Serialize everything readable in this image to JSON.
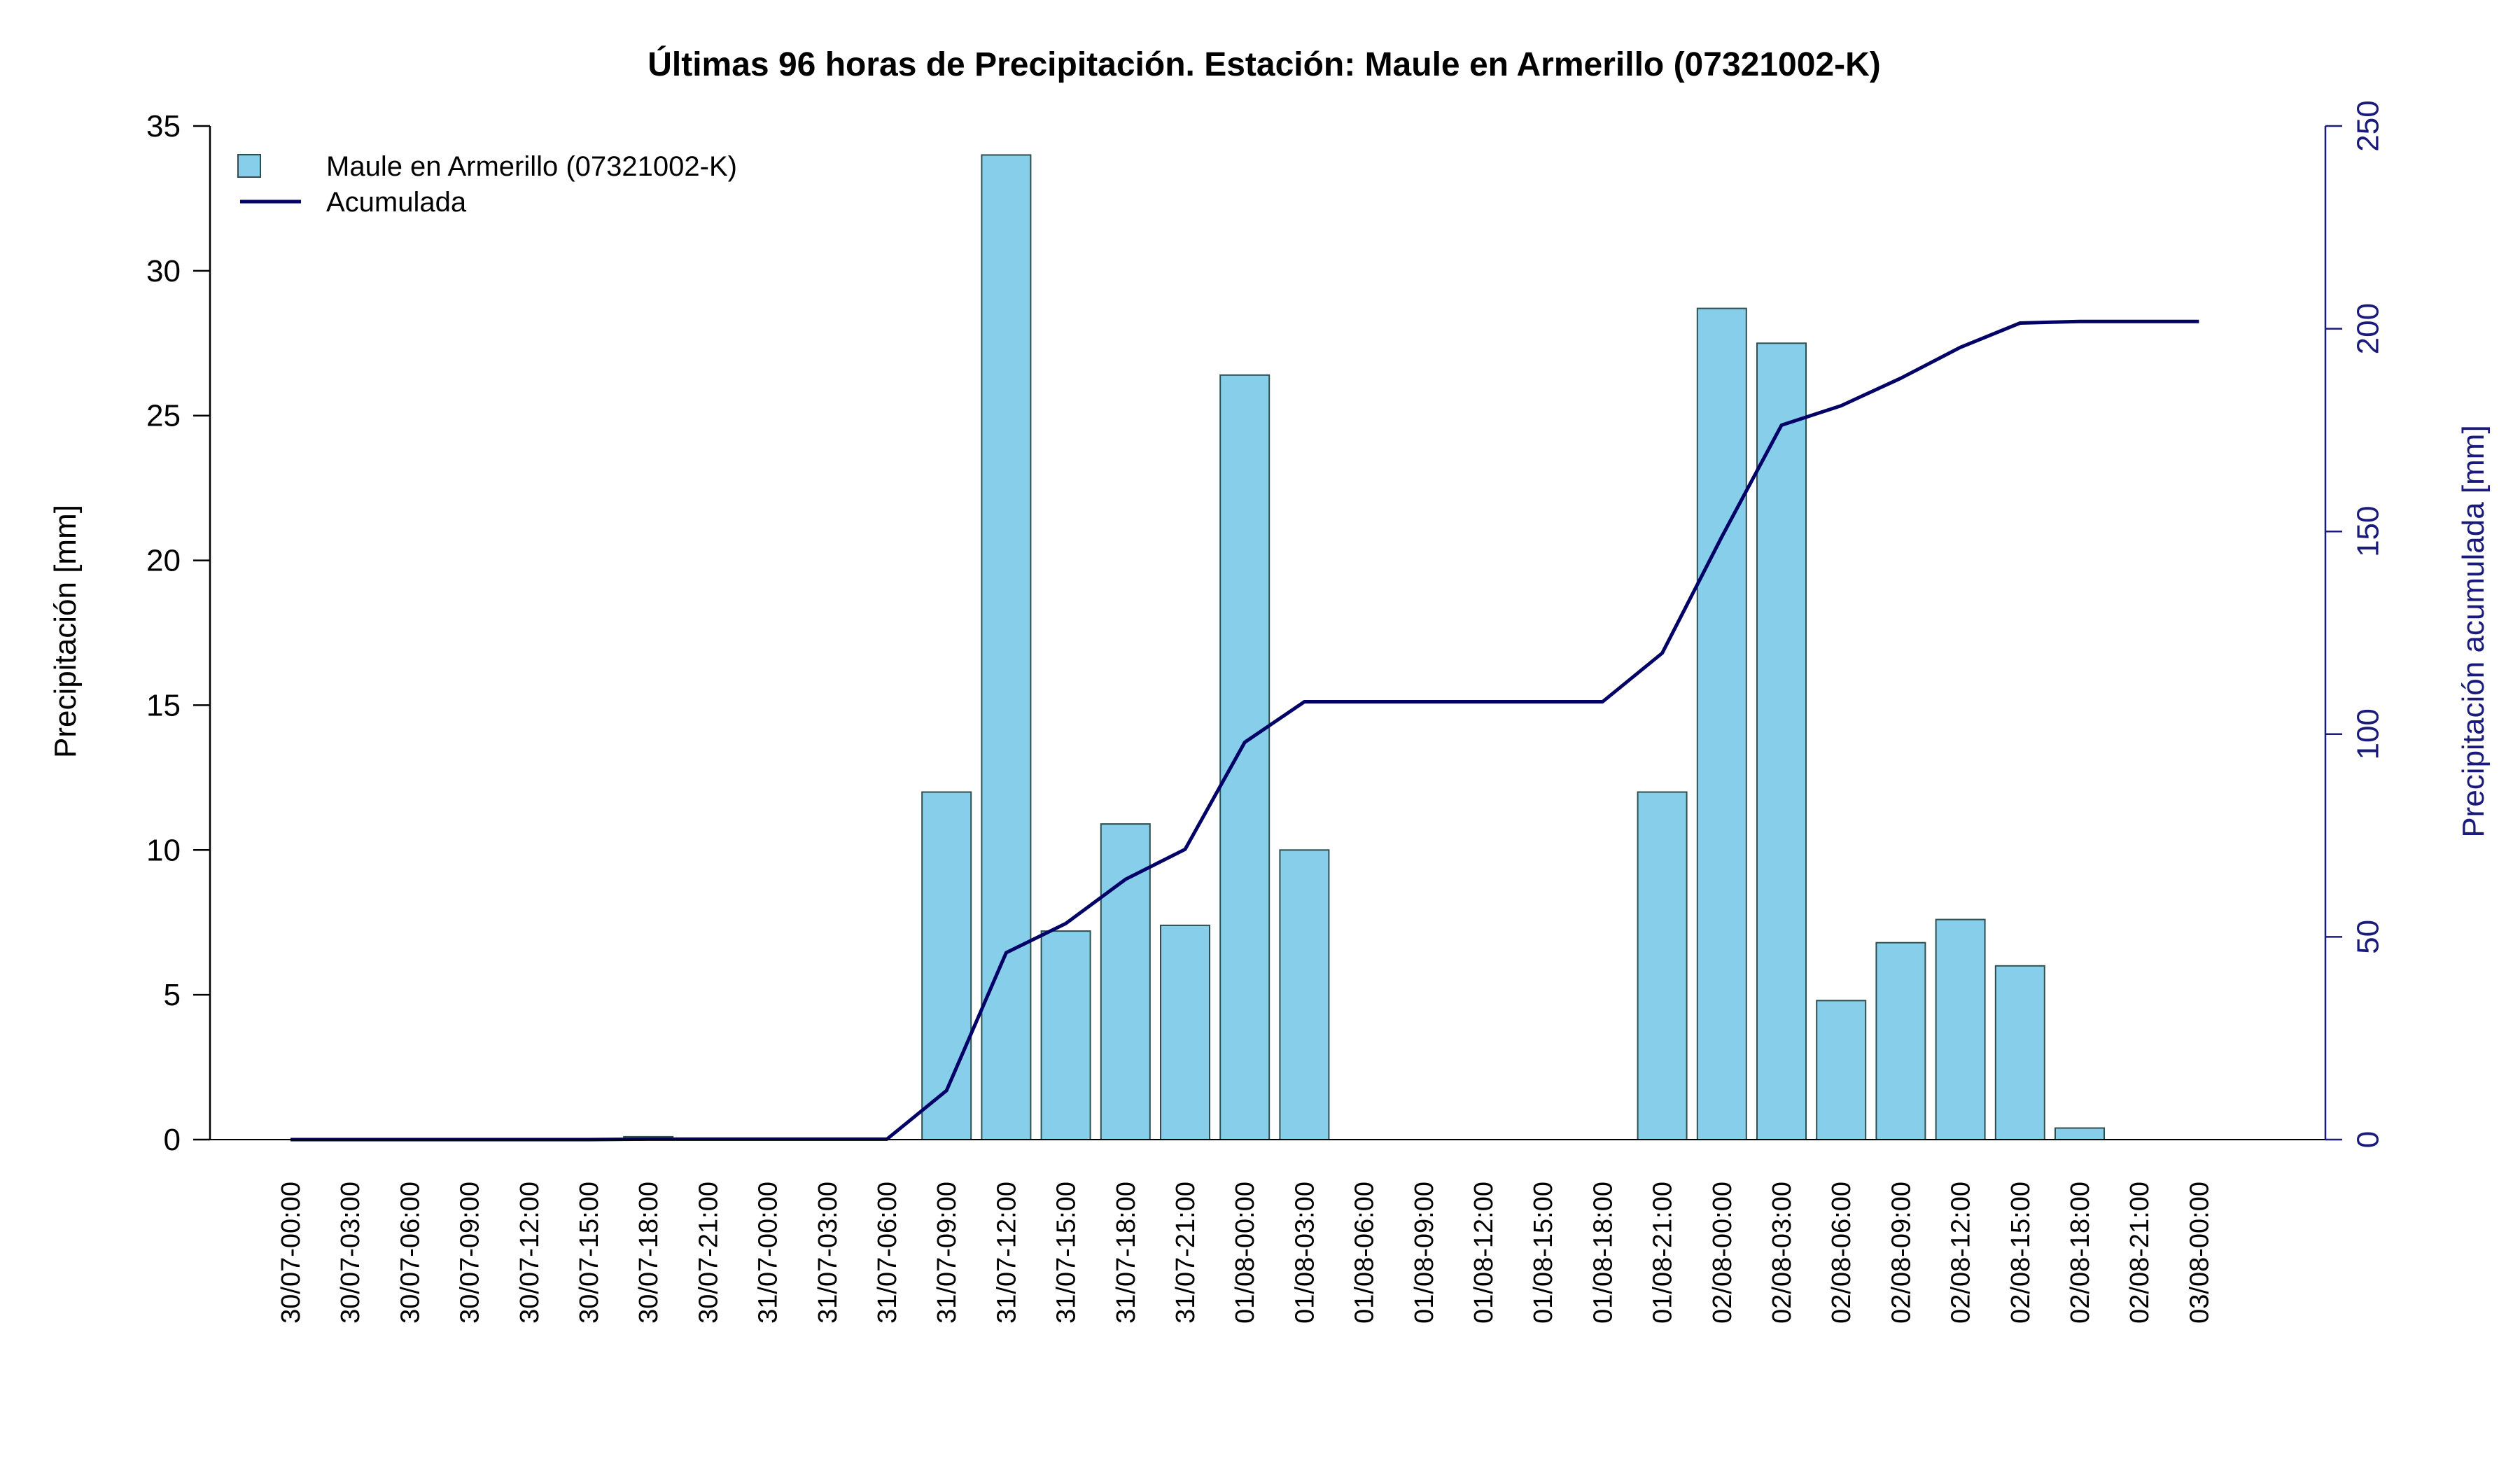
{
  "chart_data": {
    "type": "bar",
    "title": "Últimas 96 horas de Precipitación. Estación: Maule en Armerillo (07321002-K)",
    "ylabel": "Precipitación [mm]",
    "y2label": "Precipitación acumulada [mm]",
    "ylim": [
      0,
      35
    ],
    "y2lim": [
      0,
      250
    ],
    "yticks": [
      "0",
      "5",
      "10",
      "15",
      "20",
      "25",
      "30",
      "35"
    ],
    "y2ticks": [
      "0",
      "50",
      "100",
      "150",
      "200",
      "250"
    ],
    "legend_position": "top-left",
    "grid": false,
    "categories": [
      "30/07-00:00",
      "30/07-03:00",
      "30/07-06:00",
      "30/07-09:00",
      "30/07-12:00",
      "30/07-15:00",
      "30/07-18:00",
      "30/07-21:00",
      "31/07-00:00",
      "31/07-03:00",
      "31/07-06:00",
      "31/07-09:00",
      "31/07-12:00",
      "31/07-15:00",
      "31/07-18:00",
      "31/07-21:00",
      "01/08-00:00",
      "01/08-03:00",
      "01/08-06:00",
      "01/08-09:00",
      "01/08-12:00",
      "01/08-15:00",
      "01/08-18:00",
      "01/08-21:00",
      "02/08-00:00",
      "02/08-03:00",
      "02/08-06:00",
      "02/08-09:00",
      "02/08-12:00",
      "02/08-15:00",
      "02/08-18:00",
      "02/08-21:00",
      "03/08-00:00"
    ],
    "series": [
      {
        "name": "Maule en Armerillo (07321002-K)",
        "type": "bar",
        "axis": "left",
        "color": "#87ceeb",
        "values": [
          0,
          0,
          0,
          0,
          0,
          0,
          0.1,
          0,
          0,
          0,
          0,
          12.0,
          34.0,
          7.2,
          10.9,
          7.4,
          26.4,
          10.0,
          0,
          0,
          0,
          0,
          0,
          12.0,
          28.7,
          27.5,
          4.8,
          6.8,
          7.6,
          6.0,
          0.4,
          0,
          0
        ]
      },
      {
        "name": "Acumulada",
        "type": "line",
        "axis": "right",
        "color": "#000066",
        "values": [
          0,
          0,
          0,
          0,
          0,
          0,
          0.1,
          0.1,
          0.1,
          0.1,
          0.1,
          12.1,
          46.1,
          53.3,
          64.2,
          71.6,
          98.0,
          108.0,
          108.0,
          108.0,
          108.0,
          108.0,
          108.0,
          120.0,
          148.7,
          176.2,
          181.0,
          187.8,
          195.4,
          201.4,
          201.8,
          201.8,
          201.8
        ]
      }
    ]
  }
}
